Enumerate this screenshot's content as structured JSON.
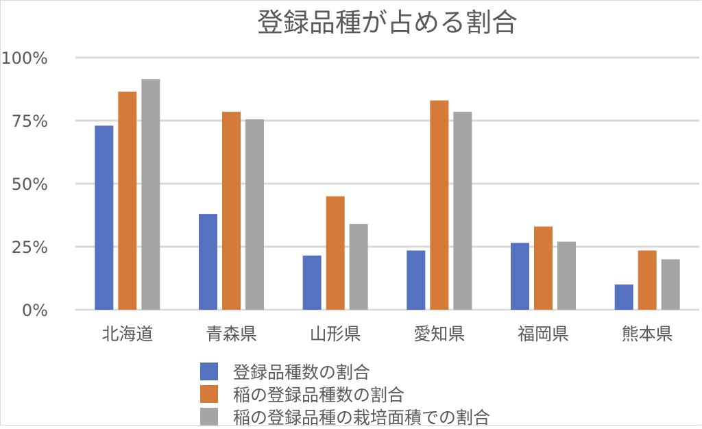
{
  "chart_data": {
    "type": "bar",
    "title": "登録品種が占める割合",
    "categories": [
      "北海道",
      "青森県",
      "山形県",
      "愛知県",
      "福岡県",
      "熊本県"
    ],
    "series": [
      {
        "name": "登録品種数の割合",
        "color": "#5572c0",
        "values": [
          73,
          38,
          21.5,
          23.5,
          26.5,
          10
        ]
      },
      {
        "name": "稲の登録品種数の割合",
        "color": "#d57b3a",
        "values": [
          86.5,
          78.5,
          45,
          83,
          33,
          23.5
        ]
      },
      {
        "name": "稲の登録品種の栽培面積での割合",
        "color": "#a5a5a5",
        "values": [
          91.5,
          75.5,
          34,
          78.5,
          27,
          20
        ]
      }
    ],
    "yticks": [
      "0%",
      "25%",
      "50%",
      "75%",
      "100%"
    ],
    "ylim": [
      0,
      100
    ],
    "xlabel": "",
    "ylabel": "",
    "grid": true,
    "legend": "bottom"
  }
}
